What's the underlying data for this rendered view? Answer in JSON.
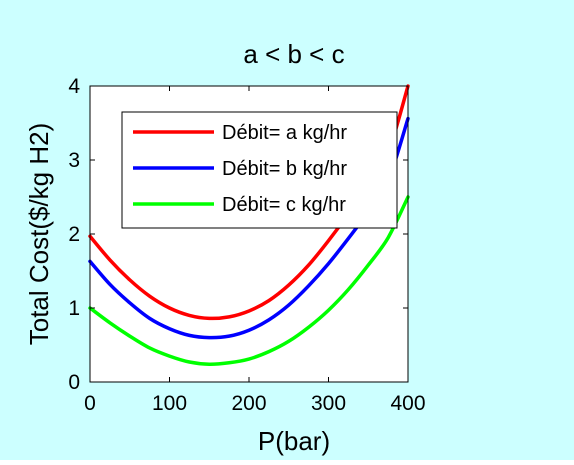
{
  "colors": {
    "figure_bg": "#ccffff",
    "plot_bg": "#ffffff",
    "axis": "#000000"
  },
  "chart_data": {
    "type": "line",
    "title": "a < b < c",
    "xlabel": "P(bar)",
    "ylabel": "Total Cost($/kg H2)",
    "xlim": [
      0,
      400
    ],
    "ylim": [
      0,
      4
    ],
    "xticks": [
      0,
      100,
      200,
      300,
      400
    ],
    "yticks": [
      0,
      1,
      2,
      3,
      4
    ],
    "xtick_labels": [
      "0",
      "100",
      "200",
      "300",
      "400"
    ],
    "ytick_labels": [
      "0",
      "1",
      "2",
      "3",
      "4"
    ],
    "grid": false,
    "legend_position": "top-left",
    "x": [
      0,
      25,
      50,
      75,
      100,
      125,
      150,
      175,
      200,
      225,
      250,
      275,
      300,
      325,
      350,
      375,
      400
    ],
    "series": [
      {
        "name": "Débit= a kg/hr",
        "color": "#ff0000",
        "values": [
          1.97,
          1.65,
          1.38,
          1.16,
          1.0,
          0.9,
          0.86,
          0.88,
          0.96,
          1.1,
          1.31,
          1.58,
          1.91,
          2.27,
          2.66,
          3.1,
          4.0
        ]
      },
      {
        "name": "Débit= b kg/hr",
        "color": "#0000ff",
        "values": [
          1.63,
          1.32,
          1.07,
          0.86,
          0.72,
          0.63,
          0.6,
          0.62,
          0.7,
          0.84,
          1.04,
          1.3,
          1.6,
          1.94,
          2.3,
          2.72,
          3.56
        ]
      },
      {
        "name": "Débit= c kg/hr",
        "color": "#00ff00",
        "values": [
          1.0,
          0.8,
          0.62,
          0.46,
          0.35,
          0.27,
          0.24,
          0.26,
          0.31,
          0.41,
          0.55,
          0.74,
          0.97,
          1.25,
          1.58,
          1.95,
          2.5
        ]
      }
    ]
  }
}
